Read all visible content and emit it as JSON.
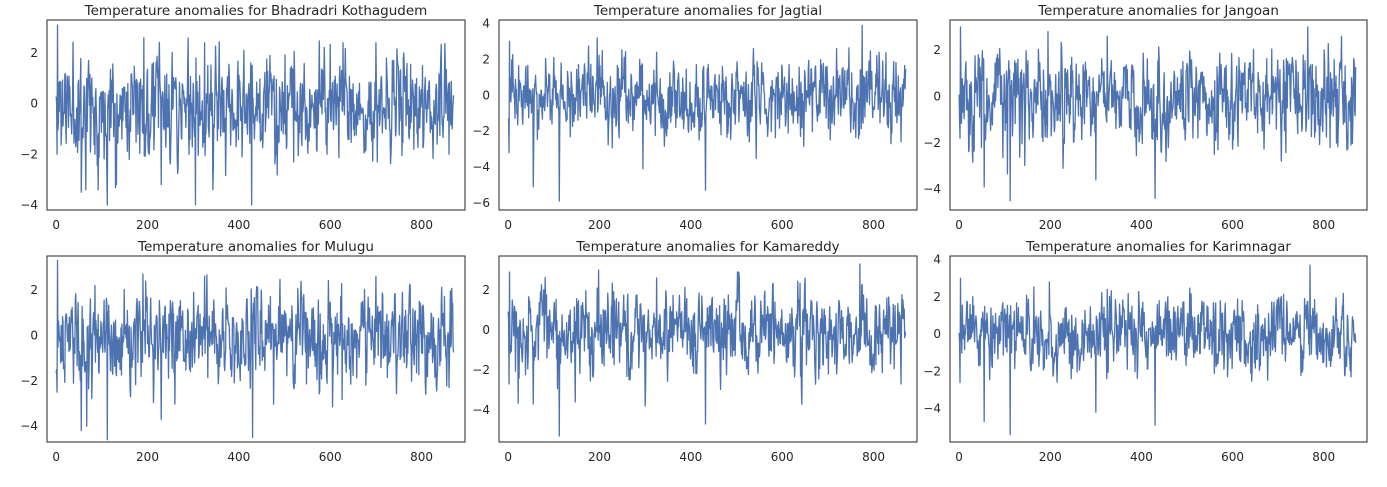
{
  "figure": {
    "background": "#ffffff",
    "line_color": "#4c72b0",
    "axes_edge_color": "#262626"
  },
  "chart_data": [
    {
      "type": "line",
      "title": "Temperature anomalies for Bhadradri Kothagudem",
      "xlabel": "",
      "ylabel": "",
      "xlim": [
        -20,
        895
      ],
      "ylim": [
        -4.2,
        3.3
      ],
      "xticks": [
        0,
        200,
        400,
        600,
        800
      ],
      "yticks": [
        -4,
        -2,
        0,
        2
      ],
      "n_points": 871,
      "seed": 11,
      "range": [
        -4.0,
        3.1
      ],
      "spikes": [
        [
          3,
          3.1
        ],
        [
          2,
          -2.0
        ],
        [
          55,
          -3.5
        ],
        [
          65,
          -3.4
        ],
        [
          112,
          -4.0
        ],
        [
          160,
          -2.2
        ],
        [
          192,
          2.6
        ],
        [
          230,
          -3.2
        ],
        [
          305,
          -4.0
        ],
        [
          325,
          2.4
        ],
        [
          428,
          -4.0
        ],
        [
          520,
          -2.3
        ],
        [
          628,
          2.4
        ],
        [
          700,
          2.4
        ],
        [
          860,
          -2.0
        ]
      ],
      "series": [
        {
          "values": []
        }
      ]
    },
    {
      "type": "line",
      "title": "Temperature anomalies for Jagtial",
      "xlabel": "",
      "ylabel": "",
      "xlim": [
        -20,
        895
      ],
      "ylim": [
        -6.4,
        4.2
      ],
      "xticks": [
        0,
        200,
        400,
        600,
        800
      ],
      "yticks": [
        -6,
        -4,
        -2,
        0,
        2,
        4
      ],
      "n_points": 871,
      "seed": 23,
      "range": [
        -5.9,
        3.9
      ],
      "spikes": [
        [
          3,
          3.0
        ],
        [
          2,
          -3.2
        ],
        [
          55,
          -5.1
        ],
        [
          112,
          -5.9
        ],
        [
          195,
          3.2
        ],
        [
          295,
          -4.1
        ],
        [
          325,
          2.4
        ],
        [
          432,
          -5.3
        ],
        [
          640,
          -2.3
        ],
        [
          775,
          3.9
        ],
        [
          860,
          -2.6
        ]
      ],
      "series": [
        {
          "values": []
        }
      ]
    },
    {
      "type": "line",
      "title": "Temperature anomalies for Jangoan",
      "xlabel": "",
      "ylabel": "",
      "xlim": [
        -20,
        895
      ],
      "ylim": [
        -4.9,
        3.3
      ],
      "xticks": [
        0,
        200,
        400,
        600,
        800
      ],
      "yticks": [
        -4,
        -2,
        0,
        2
      ],
      "n_points": 871,
      "seed": 37,
      "range": [
        -4.5,
        3.0
      ],
      "spikes": [
        [
          3,
          3.0
        ],
        [
          2,
          -1.8
        ],
        [
          55,
          -3.9
        ],
        [
          112,
          -4.5
        ],
        [
          195,
          2.8
        ],
        [
          300,
          -3.6
        ],
        [
          325,
          2.6
        ],
        [
          430,
          -4.4
        ],
        [
          560,
          -2.5
        ],
        [
          765,
          3.0
        ],
        [
          860,
          -2.1
        ]
      ],
      "series": [
        {
          "values": []
        }
      ]
    },
    {
      "type": "line",
      "title": "Temperature anomalies for Mulugu",
      "xlabel": "",
      "ylabel": "",
      "xlim": [
        -20,
        895
      ],
      "ylim": [
        -4.7,
        3.5
      ],
      "xticks": [
        0,
        200,
        400,
        600,
        800
      ],
      "yticks": [
        -4,
        -2,
        0,
        2
      ],
      "n_points": 871,
      "seed": 51,
      "range": [
        -4.6,
        3.3
      ],
      "spikes": [
        [
          3,
          3.3
        ],
        [
          2,
          -2.5
        ],
        [
          55,
          -4.2
        ],
        [
          112,
          -4.6
        ],
        [
          190,
          2.7
        ],
        [
          230,
          -3.7
        ],
        [
          325,
          2.6
        ],
        [
          430,
          -4.5
        ],
        [
          520,
          -2.3
        ],
        [
          700,
          2.6
        ],
        [
          860,
          -2.3
        ]
      ],
      "series": [
        {
          "values": []
        }
      ]
    },
    {
      "type": "line",
      "title": "Temperature anomalies for Kamareddy",
      "xlabel": "",
      "ylabel": "",
      "xlim": [
        -20,
        895
      ],
      "ylim": [
        -5.6,
        3.7
      ],
      "xticks": [
        0,
        200,
        400,
        600,
        800
      ],
      "yticks": [
        -4,
        -2,
        0,
        2
      ],
      "n_points": 871,
      "seed": 67,
      "range": [
        -5.3,
        3.3
      ],
      "spikes": [
        [
          3,
          2.9
        ],
        [
          2,
          -2.7
        ],
        [
          55,
          -3.7
        ],
        [
          112,
          -5.3
        ],
        [
          198,
          3.0
        ],
        [
          300,
          -3.8
        ],
        [
          325,
          2.6
        ],
        [
          432,
          -4.7
        ],
        [
          640,
          -2.3
        ],
        [
          770,
          3.3
        ],
        [
          860,
          -2.7
        ]
      ],
      "series": [
        {
          "values": []
        }
      ]
    },
    {
      "type": "line",
      "title": "Temperature anomalies for Karimnagar",
      "xlabel": "",
      "ylabel": "",
      "xlim": [
        -20,
        895
      ],
      "ylim": [
        -5.8,
        4.2
      ],
      "xticks": [
        0,
        200,
        400,
        600,
        800
      ],
      "yticks": [
        -4,
        -2,
        0,
        2,
        4
      ],
      "n_points": 871,
      "seed": 83,
      "range": [
        -5.4,
        3.7
      ],
      "spikes": [
        [
          3,
          3.0
        ],
        [
          2,
          -2.6
        ],
        [
          55,
          -4.7
        ],
        [
          112,
          -5.4
        ],
        [
          198,
          2.8
        ],
        [
          300,
          -4.2
        ],
        [
          325,
          2.4
        ],
        [
          430,
          -4.9
        ],
        [
          640,
          -2.1
        ],
        [
          770,
          3.7
        ],
        [
          860,
          -2.3
        ]
      ],
      "series": [
        {
          "values": []
        }
      ]
    }
  ]
}
